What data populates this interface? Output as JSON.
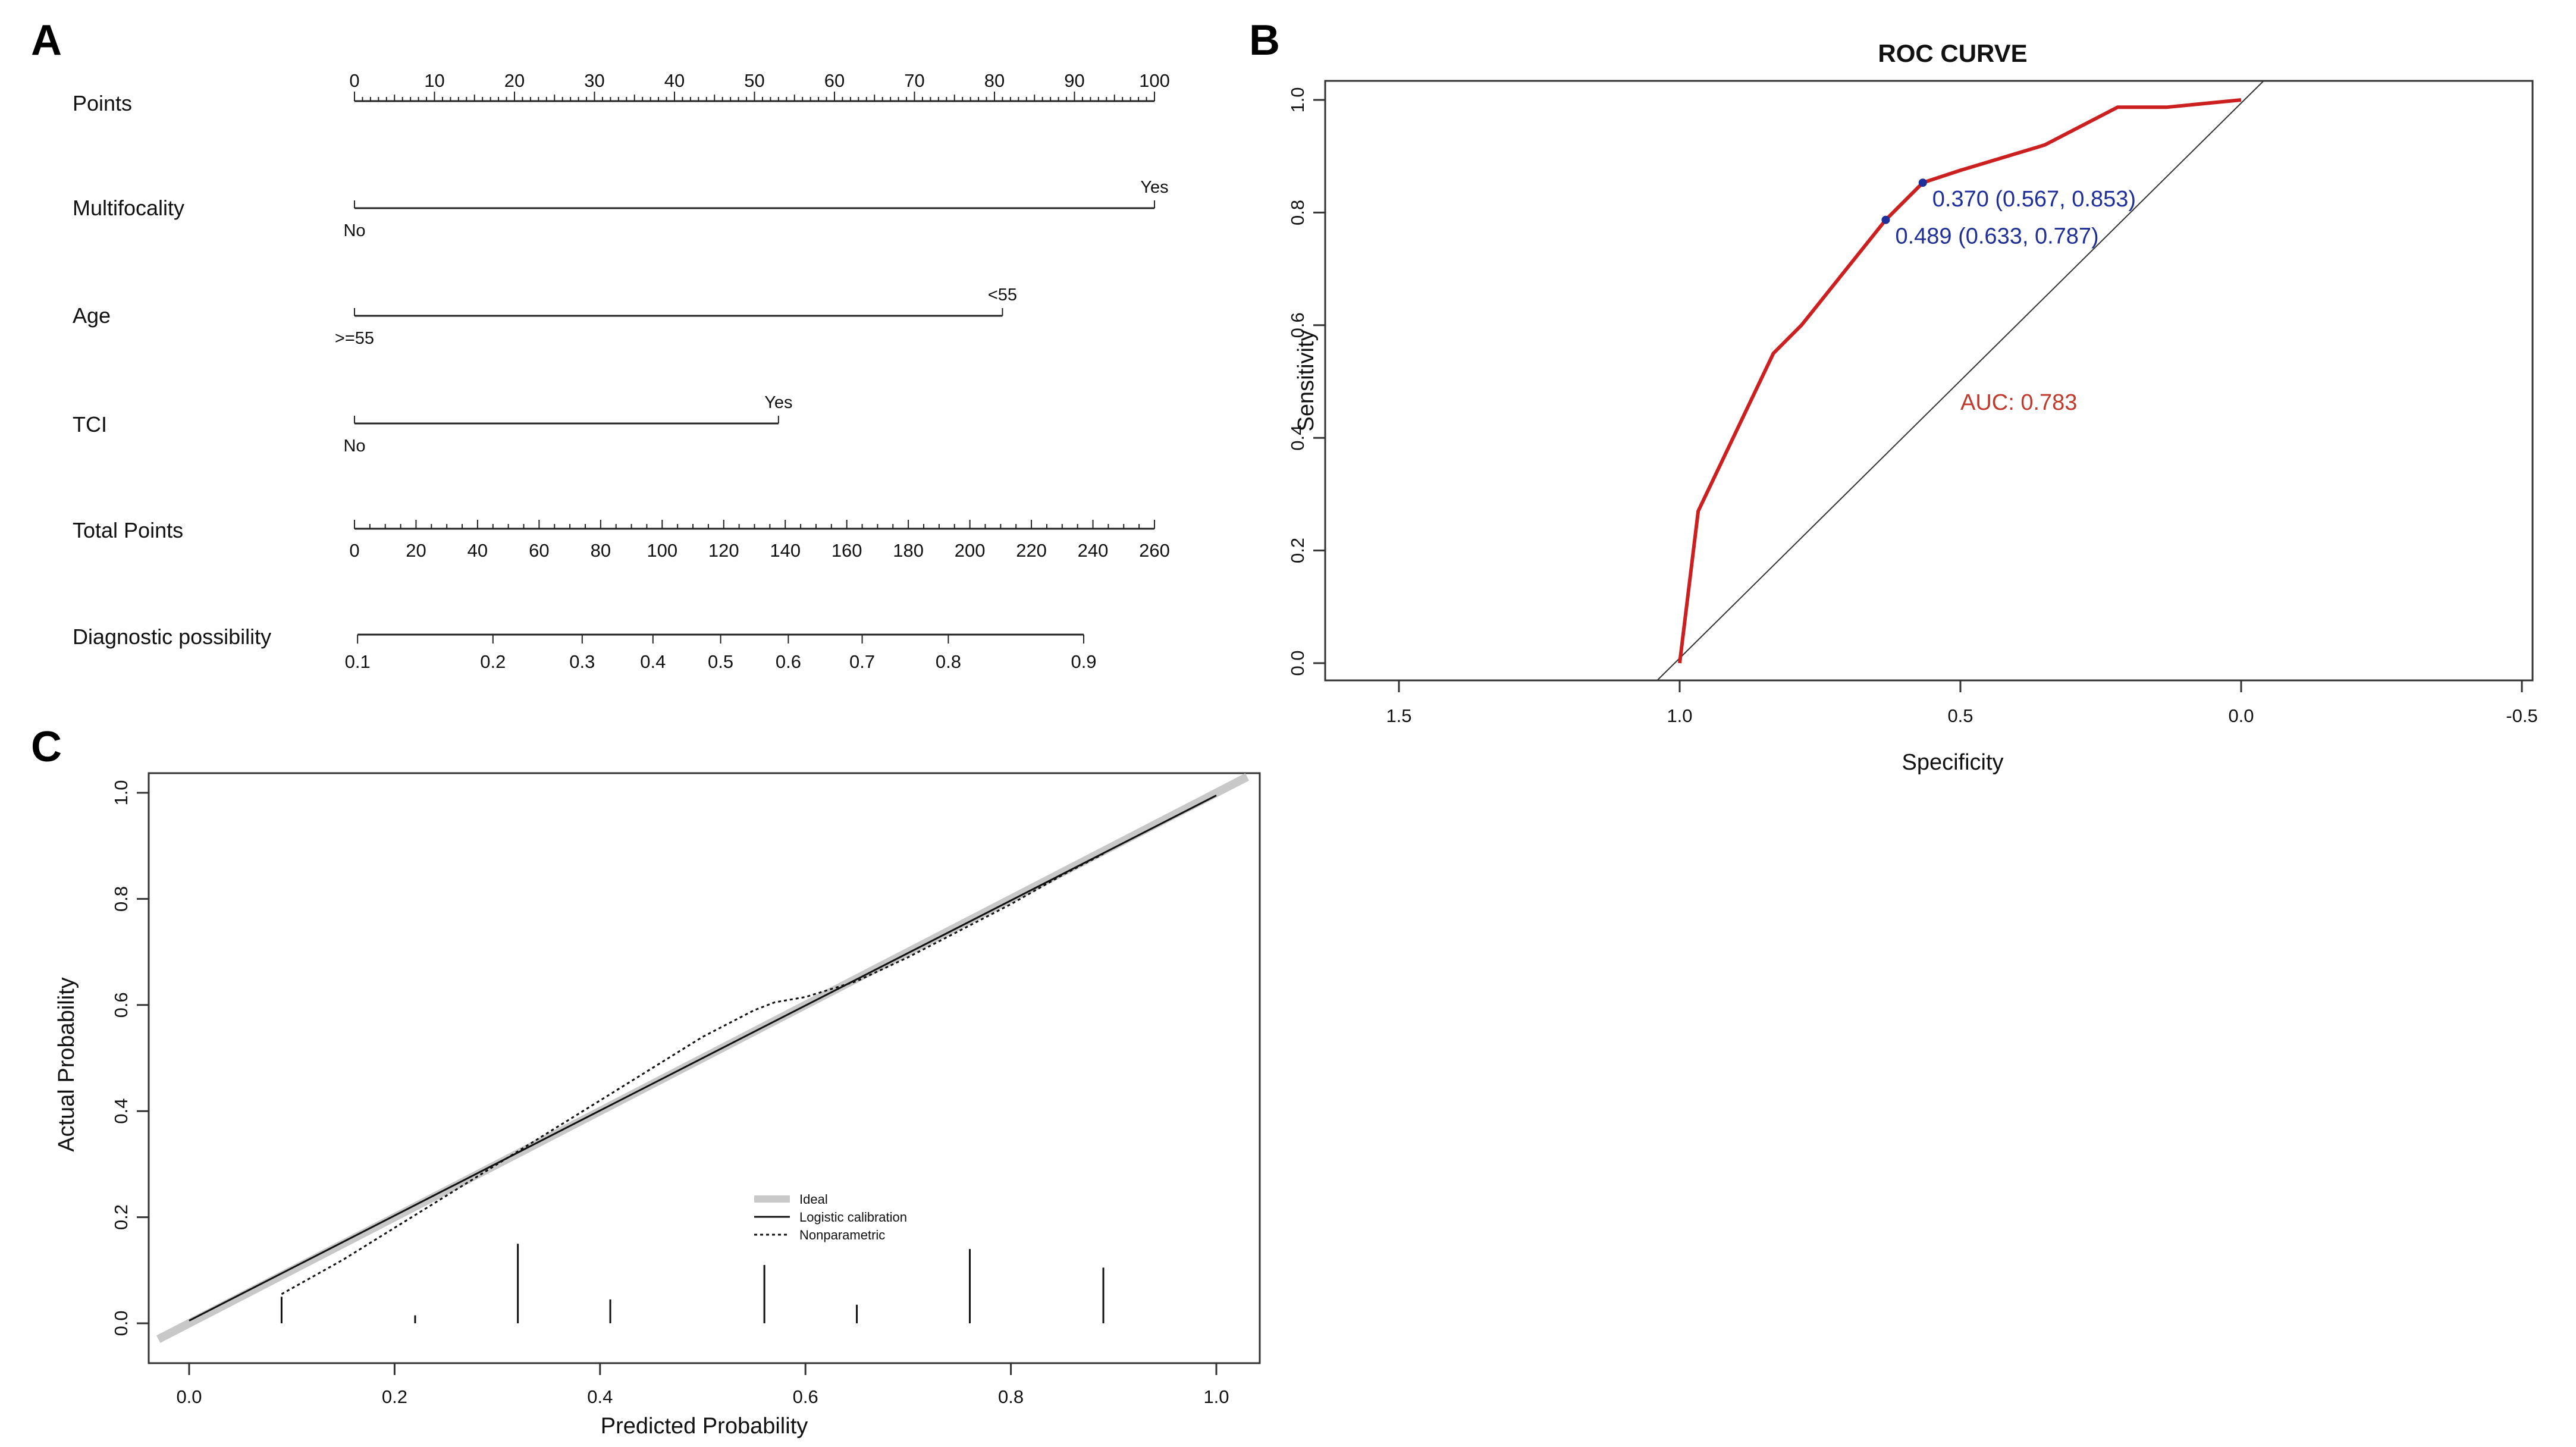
{
  "colors": {
    "roc_curve": "#cc1f1f",
    "cutoff": "#1f2f9a",
    "auc": "#c0392b",
    "ideal": "#c8c8c8"
  },
  "chart_data": [
    {
      "panel": "A",
      "type": "nomogram",
      "points_row": {
        "label": "Points",
        "min": 0,
        "max": 100,
        "tick_labels": [
          "0",
          "10",
          "20",
          "30",
          "40",
          "50",
          "60",
          "70",
          "80",
          "90",
          "100"
        ]
      },
      "variables": [
        {
          "label": "Multifocality",
          "low": {
            "text": "No",
            "points": 0
          },
          "high": {
            "text": "Yes",
            "points": 100
          }
        },
        {
          "label": "Age",
          "low": {
            "text": ">=55",
            "points": 0
          },
          "high": {
            "text": "<55",
            "points": 81
          }
        },
        {
          "label": "TCI",
          "low": {
            "text": "No",
            "points": 0
          },
          "high": {
            "text": "Yes",
            "points": 53
          }
        }
      ],
      "total_points": {
        "label": "Total Points",
        "min": 0,
        "max": 260,
        "tick_labels": [
          "0",
          "20",
          "40",
          "60",
          "80",
          "100",
          "120",
          "140",
          "160",
          "180",
          "200",
          "220",
          "240",
          "260"
        ]
      },
      "diagnostic": {
        "label": "Diagnostic possibility",
        "ticks": [
          {
            "text": "0.1",
            "total_points": 1
          },
          {
            "text": "0.2",
            "total_points": 45
          },
          {
            "text": "0.3",
            "total_points": 74
          },
          {
            "text": "0.4",
            "total_points": 97
          },
          {
            "text": "0.5",
            "total_points": 119
          },
          {
            "text": "0.6",
            "total_points": 141
          },
          {
            "text": "0.7",
            "total_points": 165
          },
          {
            "text": "0.8",
            "total_points": 193
          },
          {
            "text": "0.9",
            "total_points": 237
          }
        ]
      }
    },
    {
      "panel": "B",
      "type": "line",
      "title": "ROC CURVE",
      "xlabel": "Specificity",
      "ylabel": "Sensitivity",
      "xlim": [
        1.5,
        -0.5
      ],
      "ylim": [
        0,
        1
      ],
      "x_ticks": [
        "1.5",
        "1.0",
        "0.5",
        "0.0",
        "-0.5"
      ],
      "y_ticks": [
        "0.0",
        "0.2",
        "0.4",
        "0.6",
        "0.8",
        "1.0"
      ],
      "series": [
        {
          "name": "ROC",
          "specificity": [
            1.0,
            0.967,
            0.833,
            0.783,
            0.633,
            0.567,
            0.5,
            0.35,
            0.22,
            0.133,
            0.0
          ],
          "sensitivity": [
            0.0,
            0.27,
            0.55,
            0.6,
            0.787,
            0.853,
            0.875,
            0.92,
            0.987,
            0.987,
            1.0
          ]
        }
      ],
      "reference_line": {
        "specificity": [
          1.0,
          0.0
        ],
        "sensitivity": [
          0.0,
          1.0
        ]
      },
      "cutoff_points": [
        {
          "label": "0.370 (0.567, 0.853)",
          "specificity": 0.567,
          "sensitivity": 0.853
        },
        {
          "label": "0.489 (0.633, 0.787)",
          "specificity": 0.633,
          "sensitivity": 0.787
        }
      ],
      "auc_label": "AUC: 0.783"
    },
    {
      "panel": "C",
      "type": "line",
      "xlabel": "Predicted Probability",
      "ylabel": "Actual Probability",
      "x_ticks": [
        "0.0",
        "0.2",
        "0.4",
        "0.6",
        "0.8",
        "1.0"
      ],
      "y_ticks": [
        "0.0",
        "0.2",
        "0.4",
        "0.6",
        "0.8",
        "1.0"
      ],
      "xlim": [
        0,
        1
      ],
      "ylim": [
        0,
        1
      ],
      "legend": [
        "Ideal",
        "Logistic calibration",
        "Nonparametric"
      ],
      "series": [
        {
          "name": "Ideal",
          "x": [
            -0.03,
            1.03
          ],
          "y": [
            -0.03,
            1.03
          ]
        },
        {
          "name": "Logistic calibration",
          "x": [
            0.0,
            1.0
          ],
          "y": [
            0.005,
            0.995
          ]
        },
        {
          "name": "Nonparametric",
          "x": [
            0.09,
            0.15,
            0.2,
            0.25,
            0.3,
            0.35,
            0.4,
            0.45,
            0.5,
            0.55,
            0.57,
            0.6,
            0.65,
            0.7,
            0.75,
            0.8,
            0.85,
            0.89
          ],
          "y": [
            0.055,
            0.12,
            0.18,
            0.24,
            0.3,
            0.36,
            0.42,
            0.48,
            0.54,
            0.59,
            0.605,
            0.615,
            0.645,
            0.69,
            0.74,
            0.79,
            0.845,
            0.885
          ]
        }
      ],
      "rug": [
        {
          "x": 0.09,
          "h": 0.05
        },
        {
          "x": 0.22,
          "h": 0.015
        },
        {
          "x": 0.32,
          "h": 0.15
        },
        {
          "x": 0.41,
          "h": 0.045
        },
        {
          "x": 0.56,
          "h": 0.11
        },
        {
          "x": 0.65,
          "h": 0.035
        },
        {
          "x": 0.76,
          "h": 0.14
        },
        {
          "x": 0.89,
          "h": 0.105
        }
      ]
    }
  ]
}
